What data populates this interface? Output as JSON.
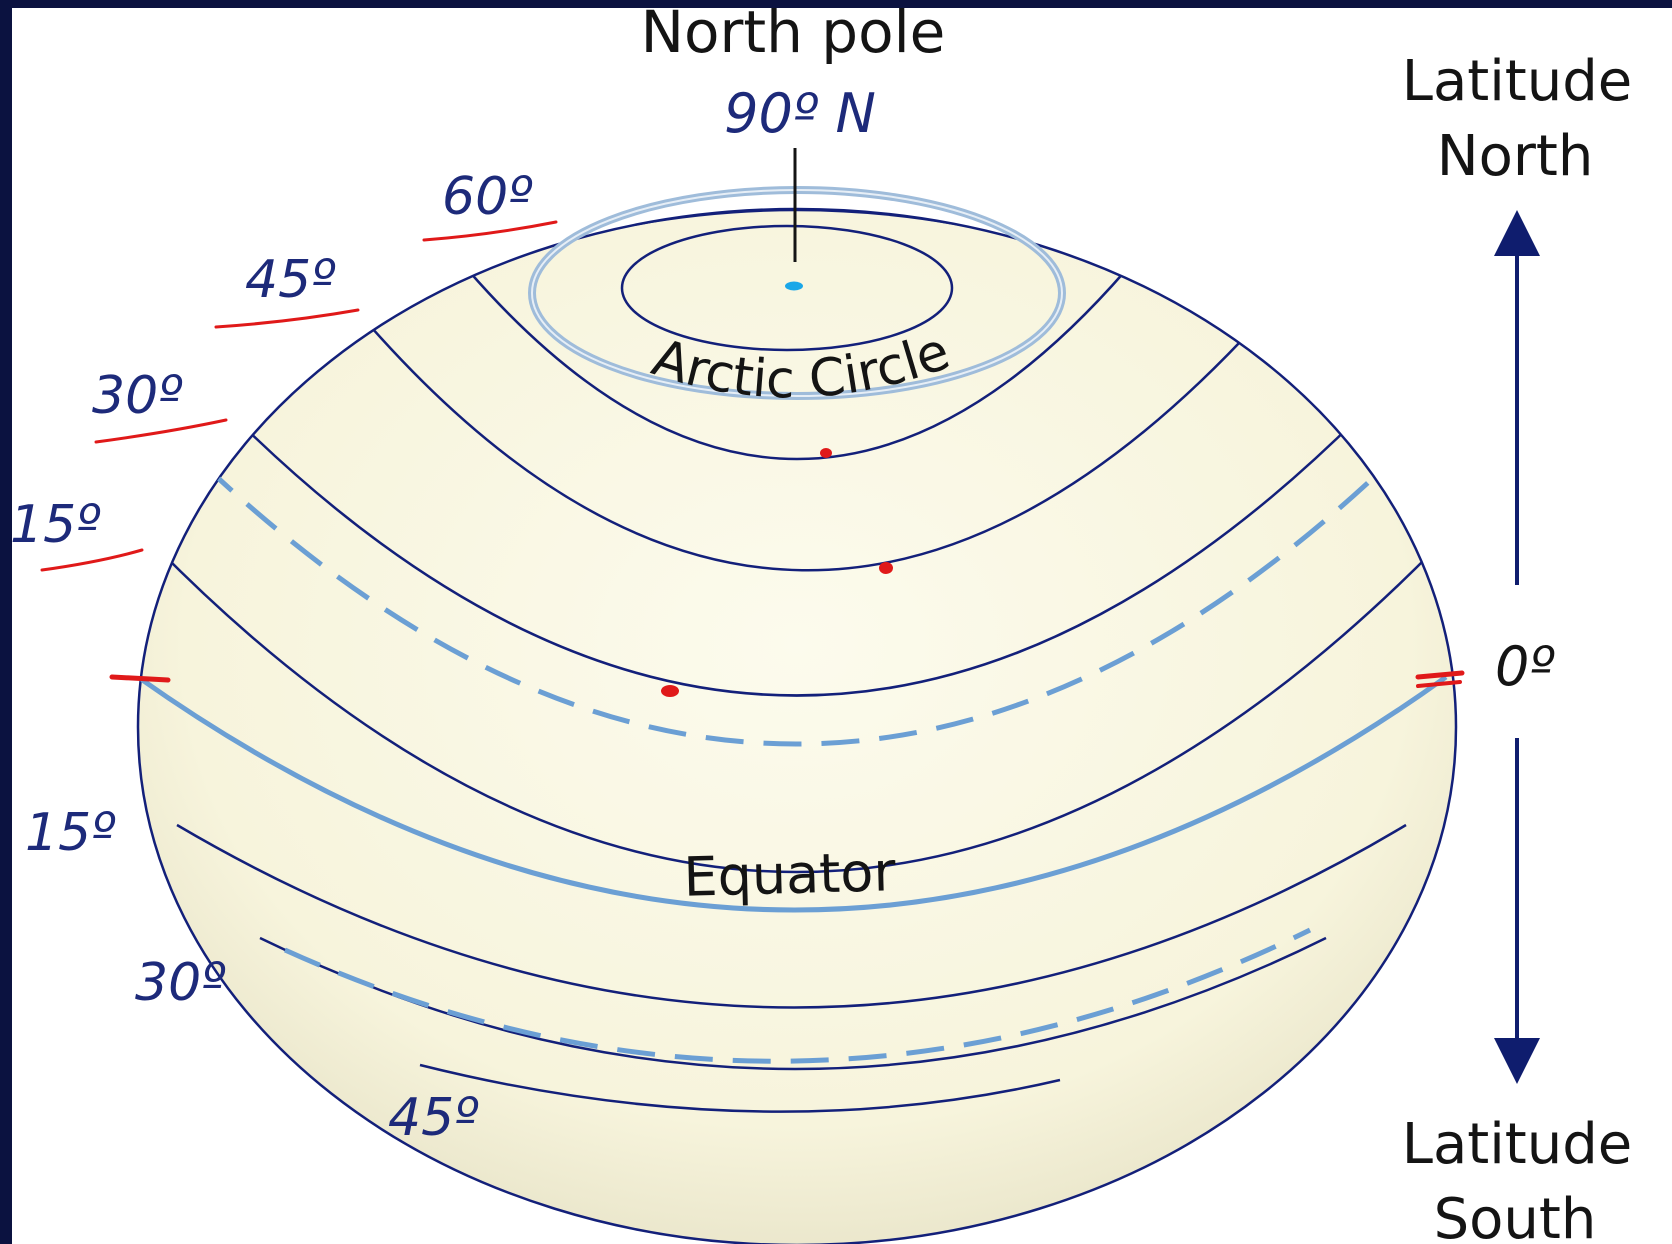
{
  "labels": {
    "north_pole": "North pole",
    "north_pole_degree": "90º N",
    "arctic_circle": "Arctic Circle",
    "equator": "Equator",
    "latitude_north_line1": "Latitude",
    "latitude_north_line2": "North",
    "latitude_south_line1": "Latitude",
    "latitude_south_line2": "South",
    "zero_degree": "0º"
  },
  "north_degrees": [
    "60º",
    "45º",
    "30º",
    "15º"
  ],
  "south_degrees": [
    "15º",
    "30º",
    "45º"
  ],
  "colors": {
    "background": "#0b1240",
    "globe_fill": "#fbf9e6",
    "latitude_line": "#13207a",
    "special_parallel": "#6b9fd4",
    "pole_dot": "#1aa7e8",
    "annotation_red": "#e01919",
    "axis_arrow": "#0f1d6e"
  },
  "icons": {
    "north_arrow": "arrow-up-icon",
    "south_arrow": "arrow-down-icon"
  }
}
